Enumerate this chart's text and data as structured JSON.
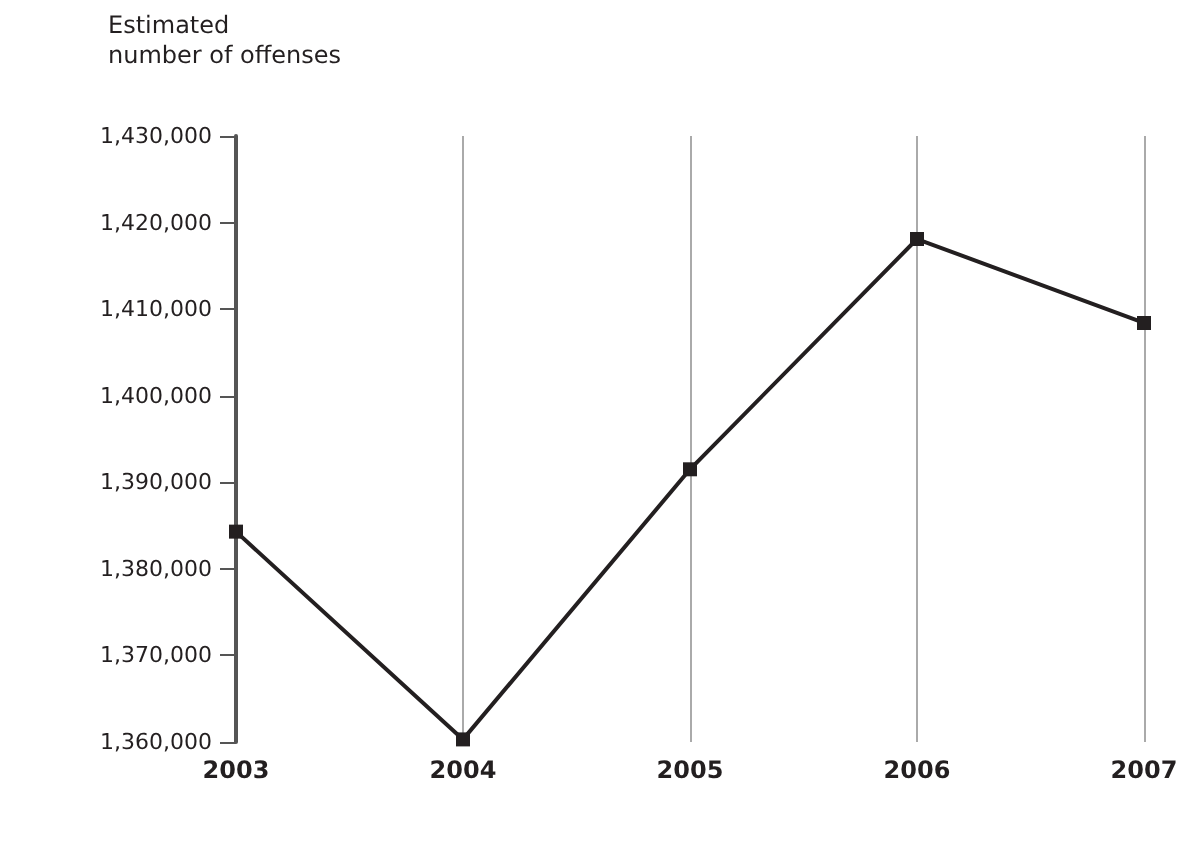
{
  "chart_data": {
    "type": "line",
    "ylabel": "Estimated\nnumber of offenses",
    "categories": [
      "2003",
      "2004",
      "2005",
      "2006",
      "2007"
    ],
    "series": [
      {
        "color": "#231f20",
        "values": [
          1384300,
          1360300,
          1391500,
          1418100,
          1408400
        ]
      }
    ],
    "ylim": [
      1360000,
      1430000
    ],
    "yticks": [
      {
        "value": 1360000,
        "label": "1,360,000"
      },
      {
        "value": 1370000,
        "label": "1,370,000"
      },
      {
        "value": 1380000,
        "label": "1,380,000"
      },
      {
        "value": 1390000,
        "label": "1,390,000"
      },
      {
        "value": 1400000,
        "label": "1,400,000"
      },
      {
        "value": 1410000,
        "label": "1,410,000"
      },
      {
        "value": 1420000,
        "label": "1,420,000"
      },
      {
        "value": 1430000,
        "label": "1,430,000"
      }
    ],
    "grid": "x",
    "marker": "square",
    "line_style": "solid"
  }
}
